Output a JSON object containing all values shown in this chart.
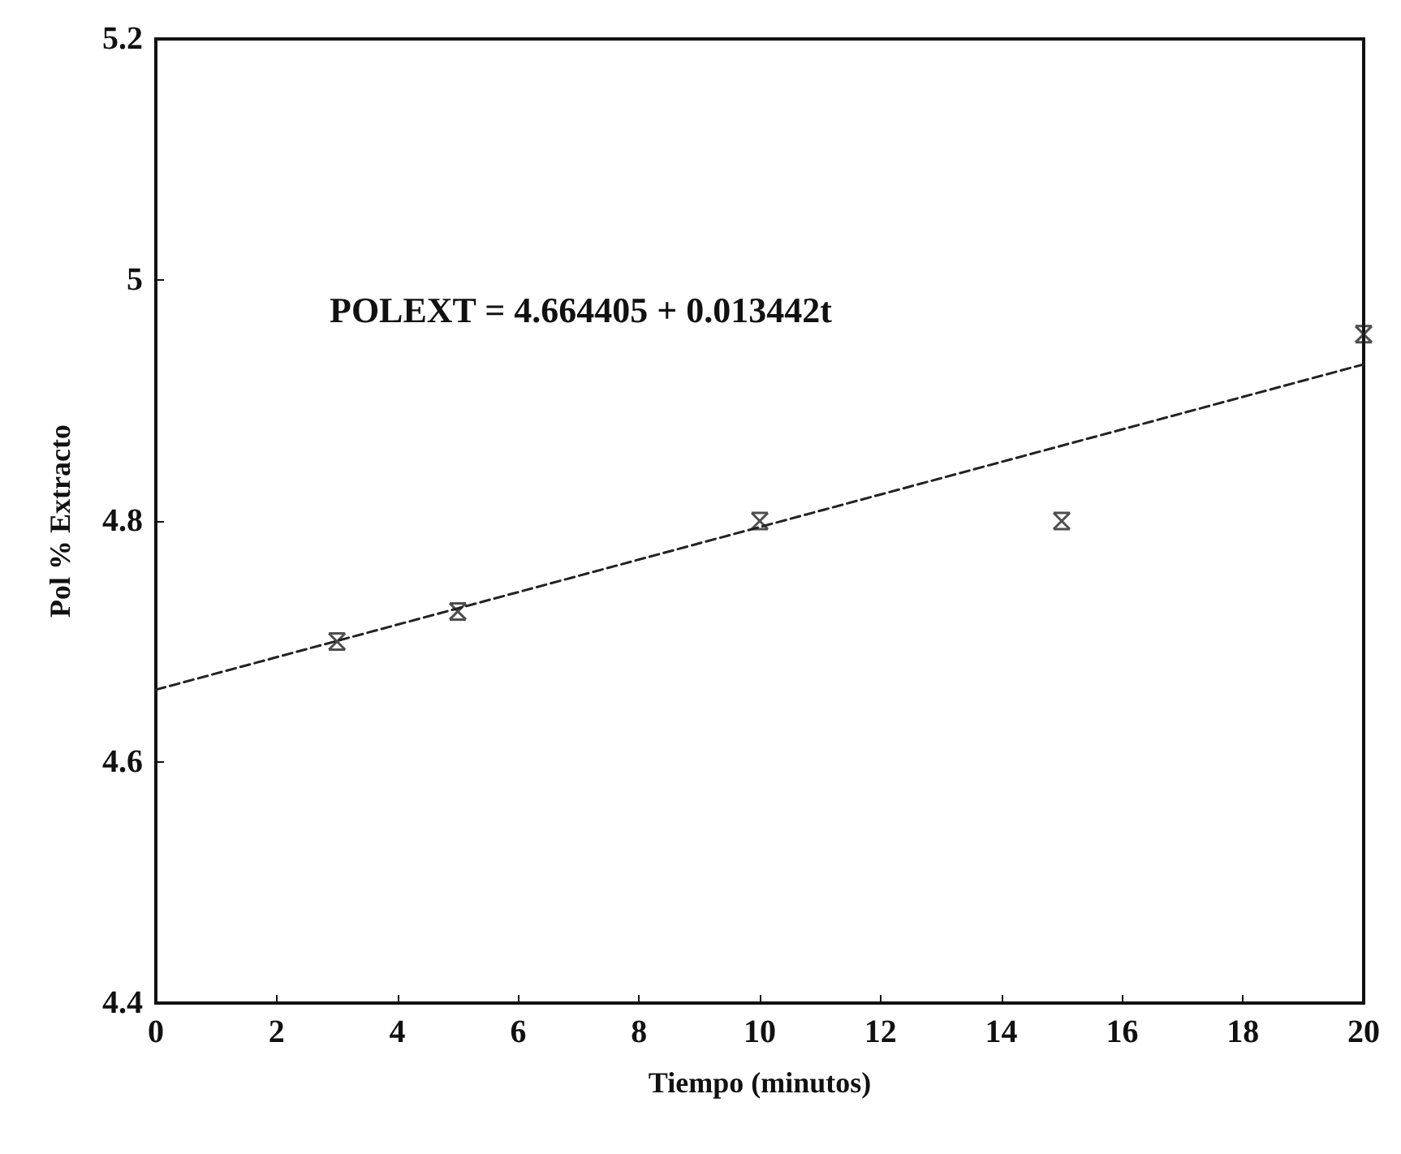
{
  "chart_data": {
    "type": "scatter",
    "xlabel": "Tiempo (minutos)",
    "ylabel": "Pol % Extracto",
    "annotations": [
      "POLEXT = 4.664405 + 0.013442t"
    ],
    "xlim": [
      0,
      20
    ],
    "xticks": [
      0,
      2,
      4,
      6,
      8,
      10,
      12,
      14,
      16,
      18,
      20
    ],
    "ylim": [
      4.4,
      5.2
    ],
    "yticks": [
      4.4,
      4.6,
      4.8,
      5,
      5.2
    ],
    "grid": false,
    "marker": "cross",
    "series": [
      {
        "color": "#222222",
        "x": [
          3,
          5,
          10,
          15,
          20
        ],
        "values": [
          4.7,
          4.725,
          4.8,
          4.8,
          4.955
        ]
      },
      {
        "type": "line",
        "color": "#222222",
        "line_style": "dashed",
        "marker": "none",
        "x": [
          0,
          20
        ],
        "values": [
          4.66,
          4.93
        ]
      }
    ]
  }
}
